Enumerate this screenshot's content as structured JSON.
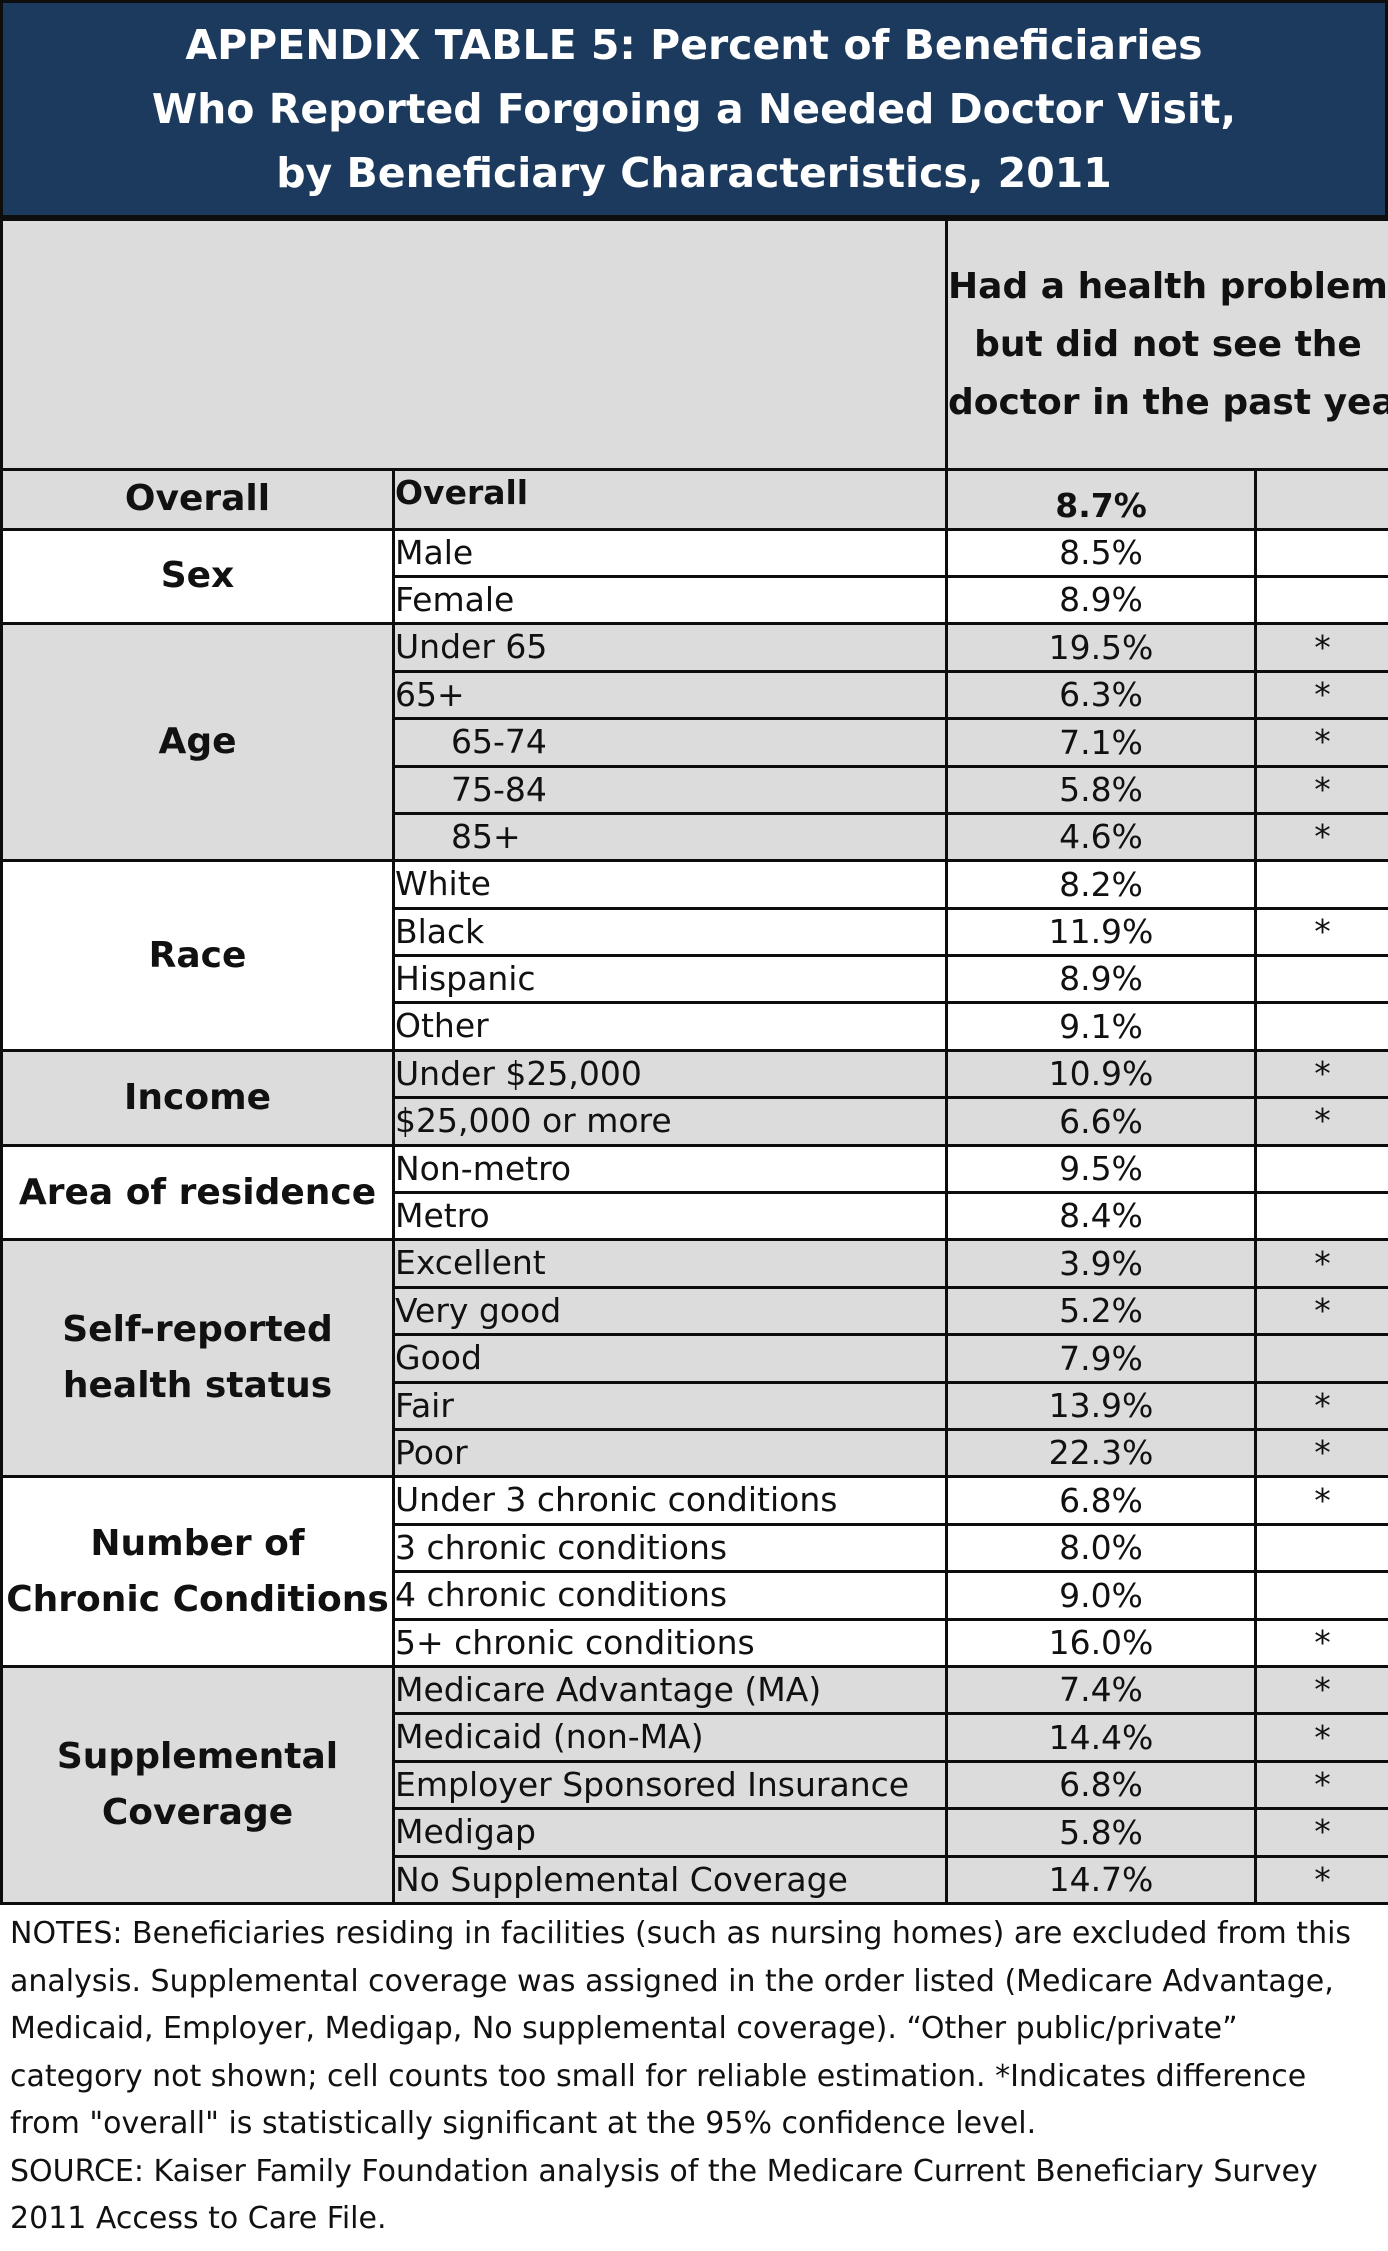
{
  "title": {
    "line1": "APPENDIX TABLE 5: Percent of Beneficiaries",
    "line2": "Who Reported Forgoing a Needed Doctor Visit,",
    "line3": "by Beneficiary Characteristics, 2011"
  },
  "column_header": {
    "line1": "Had a health problem",
    "line2": "but did not see the",
    "line3": "doctor in the past year"
  },
  "groups": [
    {
      "category": [
        "Overall"
      ],
      "shade": true,
      "rows": [
        {
          "label": "Overall",
          "value": "8.7%",
          "sig": "",
          "bold": true
        }
      ]
    },
    {
      "category": [
        "Sex"
      ],
      "shade": false,
      "rows": [
        {
          "label": "Male",
          "value": "8.5%",
          "sig": ""
        },
        {
          "label": "Female",
          "value": "8.9%",
          "sig": ""
        }
      ]
    },
    {
      "category": [
        "Age"
      ],
      "shade": true,
      "rows": [
        {
          "label": "Under 65",
          "value": "19.5%",
          "sig": "*"
        },
        {
          "label": "65+",
          "value": "6.3%",
          "sig": "*"
        },
        {
          "label": "65-74",
          "value": "7.1%",
          "sig": "*",
          "indent": true
        },
        {
          "label": "75-84",
          "value": "5.8%",
          "sig": "*",
          "indent": true
        },
        {
          "label": "85+",
          "value": "4.6%",
          "sig": "*",
          "indent": true
        }
      ]
    },
    {
      "category": [
        "Race"
      ],
      "shade": false,
      "rows": [
        {
          "label": "White",
          "value": "8.2%",
          "sig": ""
        },
        {
          "label": "Black",
          "value": "11.9%",
          "sig": "*"
        },
        {
          "label": "Hispanic",
          "value": "8.9%",
          "sig": ""
        },
        {
          "label": "Other",
          "value": "9.1%",
          "sig": ""
        }
      ]
    },
    {
      "category": [
        "Income"
      ],
      "shade": true,
      "rows": [
        {
          "label": "Under $25,000",
          "value": "10.9%",
          "sig": "*"
        },
        {
          "label": "$25,000 or more",
          "value": "6.6%",
          "sig": "*"
        }
      ]
    },
    {
      "category": [
        "Area of residence"
      ],
      "shade": false,
      "rows": [
        {
          "label": "Non-metro",
          "value": "9.5%",
          "sig": ""
        },
        {
          "label": "Metro",
          "value": "8.4%",
          "sig": ""
        }
      ]
    },
    {
      "category": [
        "Self-reported",
        "health status"
      ],
      "shade": true,
      "rows": [
        {
          "label": "Excellent",
          "value": "3.9%",
          "sig": "*"
        },
        {
          "label": "Very good",
          "value": "5.2%",
          "sig": "*"
        },
        {
          "label": "Good",
          "value": "7.9%",
          "sig": ""
        },
        {
          "label": "Fair",
          "value": "13.9%",
          "sig": "*"
        },
        {
          "label": "Poor",
          "value": "22.3%",
          "sig": "*"
        }
      ]
    },
    {
      "category": [
        "Number of",
        "Chronic Conditions"
      ],
      "shade": false,
      "rows": [
        {
          "label": "Under 3 chronic conditions",
          "value": "6.8%",
          "sig": "*"
        },
        {
          "label": "3 chronic conditions",
          "value": "8.0%",
          "sig": ""
        },
        {
          "label": "4 chronic conditions",
          "value": "9.0%",
          "sig": ""
        },
        {
          "label": "5+ chronic conditions",
          "value": "16.0%",
          "sig": "*"
        }
      ]
    },
    {
      "category": [
        "Supplemental",
        "Coverage"
      ],
      "shade": true,
      "rows": [
        {
          "label": "Medicare Advantage (MA)",
          "value": "7.4%",
          "sig": "*"
        },
        {
          "label": "Medicaid (non-MA)",
          "value": "14.4%",
          "sig": "*"
        },
        {
          "label": "Employer Sponsored Insurance",
          "value": "6.8%",
          "sig": "*"
        },
        {
          "label": "Medigap",
          "value": "5.8%",
          "sig": "*"
        },
        {
          "label": "No Supplemental Coverage",
          "value": "14.7%",
          "sig": "*"
        }
      ]
    }
  ],
  "notes": {
    "line1": "NOTES: Beneficiaries residing in facilities (such as nursing homes) are excluded from this",
    "line2": "analysis.  Supplemental coverage was assigned in the order listed (Medicare Advantage,",
    "line3": "Medicaid, Employer, Medigap, No supplemental coverage). “Other public/private”",
    "line4": "category not shown; cell counts too small for reliable estimation.  *Indicates difference",
    "line5": "from \"overall\" is statistically significant at the 95% confidence level.",
    "line6": "SOURCE: Kaiser Family Foundation analysis of the Medicare Current Beneficiary Survey",
    "line7": "2011 Access to Care File."
  },
  "colors": {
    "title_bg": "#1b3a5e",
    "shade": "#dcdcdc",
    "border": "#0d0d0d"
  }
}
